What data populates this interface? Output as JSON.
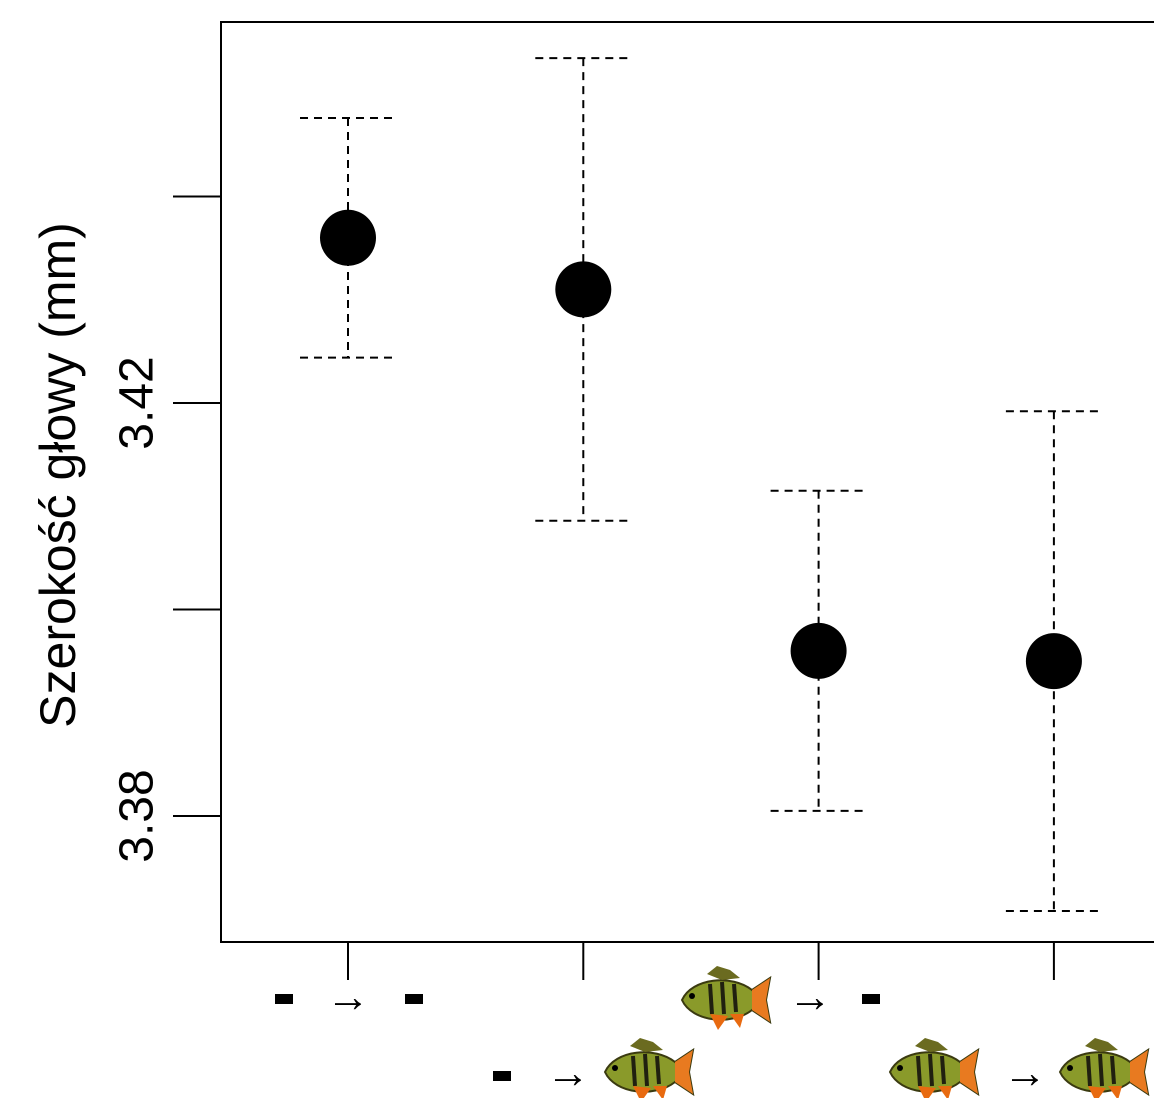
{
  "chart_data": {
    "type": "errorbar",
    "y_label": "Szerokość głowy (mm)",
    "categories": [
      null,
      null,
      null,
      null
    ],
    "values": [
      3.436,
      3.431,
      3.396,
      3.395
    ],
    "errors": [
      0.0116,
      0.0224,
      0.0155,
      0.0242
    ],
    "color": "#000000",
    "ylim": [
      3.3678,
      3.4569
    ],
    "yticks": [
      3.38,
      3.42
    ],
    "minor_yticks": [
      3.4,
      3.44
    ]
  }
}
